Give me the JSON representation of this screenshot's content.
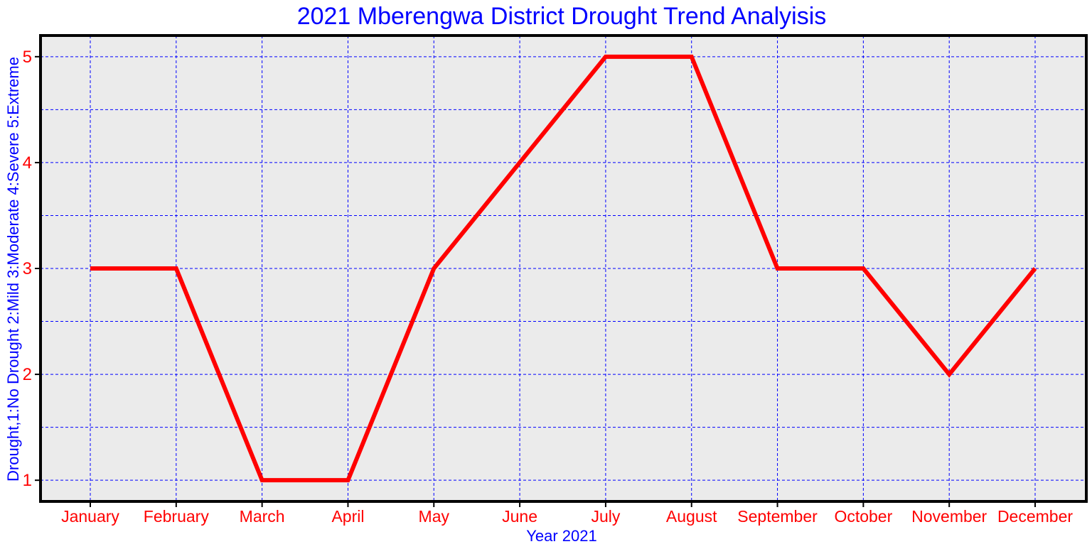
{
  "chart_data": {
    "type": "line",
    "title": "2021 Mberengwa District Drought Trend Analyisis",
    "xlabel": "Year 2021",
    "ylabel": "Drought,1:No Drought 2:Mild 3:Moderate 4:Severe 5:Extreme",
    "categories": [
      "January",
      "February",
      "March",
      "April",
      "May",
      "June",
      "July",
      "August",
      "September",
      "October",
      "November",
      "December"
    ],
    "values": [
      3,
      3,
      1,
      1,
      3,
      4,
      5,
      5,
      3,
      3,
      2,
      3
    ],
    "ylim": [
      0.8,
      5.2
    ],
    "yticks": [
      "1",
      "2",
      "3",
      "4",
      "5"
    ],
    "grid": true,
    "colors": {
      "line": "#ff0000",
      "grid": "#0000ff",
      "plot_background": "#ebebeb",
      "title": "#0000ff",
      "tick_labels": "#ff0000"
    }
  }
}
